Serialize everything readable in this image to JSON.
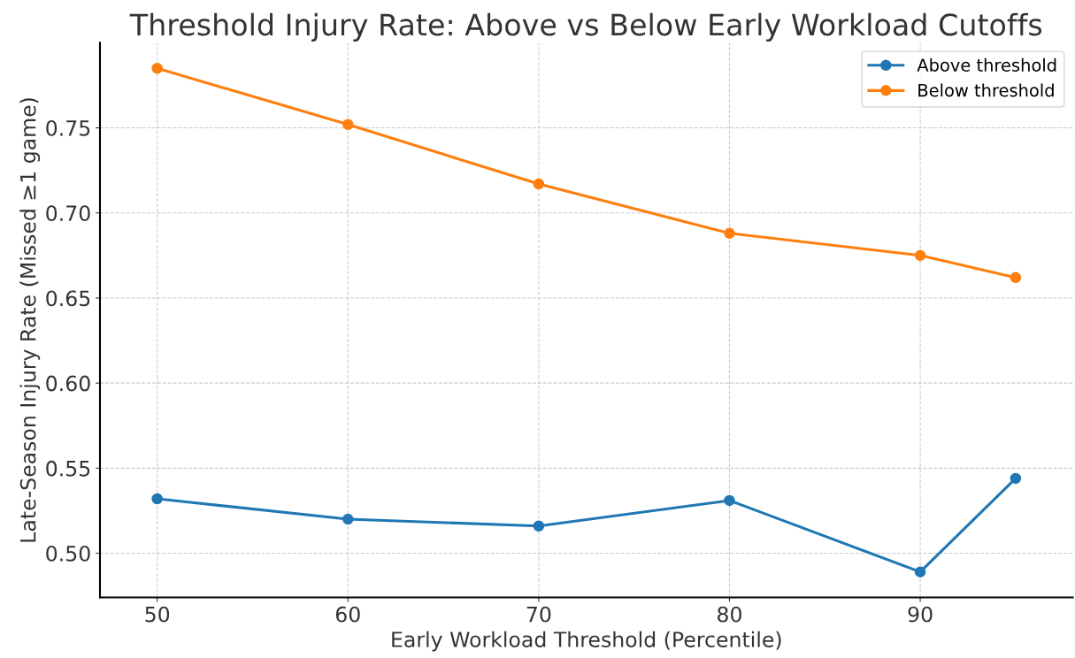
{
  "chart_data": {
    "type": "line",
    "title": "Threshold Injury Rate: Above vs Below Early Workload Cutoffs",
    "xlabel": "Early Workload Threshold (Percentile)",
    "ylabel": "Late-Season Injury Rate (Missed ≥1 game)",
    "x": [
      50,
      60,
      70,
      80,
      90,
      95
    ],
    "series": [
      {
        "name": "Above threshold",
        "color": "#1f77b4",
        "values": [
          0.532,
          0.52,
          0.516,
          0.531,
          0.489,
          0.544
        ]
      },
      {
        "name": "Below threshold",
        "color": "#ff7f0e",
        "values": [
          0.785,
          0.752,
          0.717,
          0.688,
          0.675,
          0.662
        ]
      }
    ],
    "xlim": [
      47,
      98
    ],
    "xticks": [
      50,
      60,
      70,
      80,
      90
    ],
    "ylim": [
      0.474,
      0.8
    ],
    "yticks": [
      {
        "value": 0.5,
        "label": "0.50"
      },
      {
        "value": 0.55,
        "label": "0.55"
      },
      {
        "value": 0.6,
        "label": "0.60"
      },
      {
        "value": 0.65,
        "label": "0.65"
      },
      {
        "value": 0.7,
        "label": "0.70"
      },
      {
        "value": 0.75,
        "label": "0.75"
      }
    ],
    "grid": true,
    "legend": "top right",
    "marker": "circle",
    "line_style": "solid"
  }
}
